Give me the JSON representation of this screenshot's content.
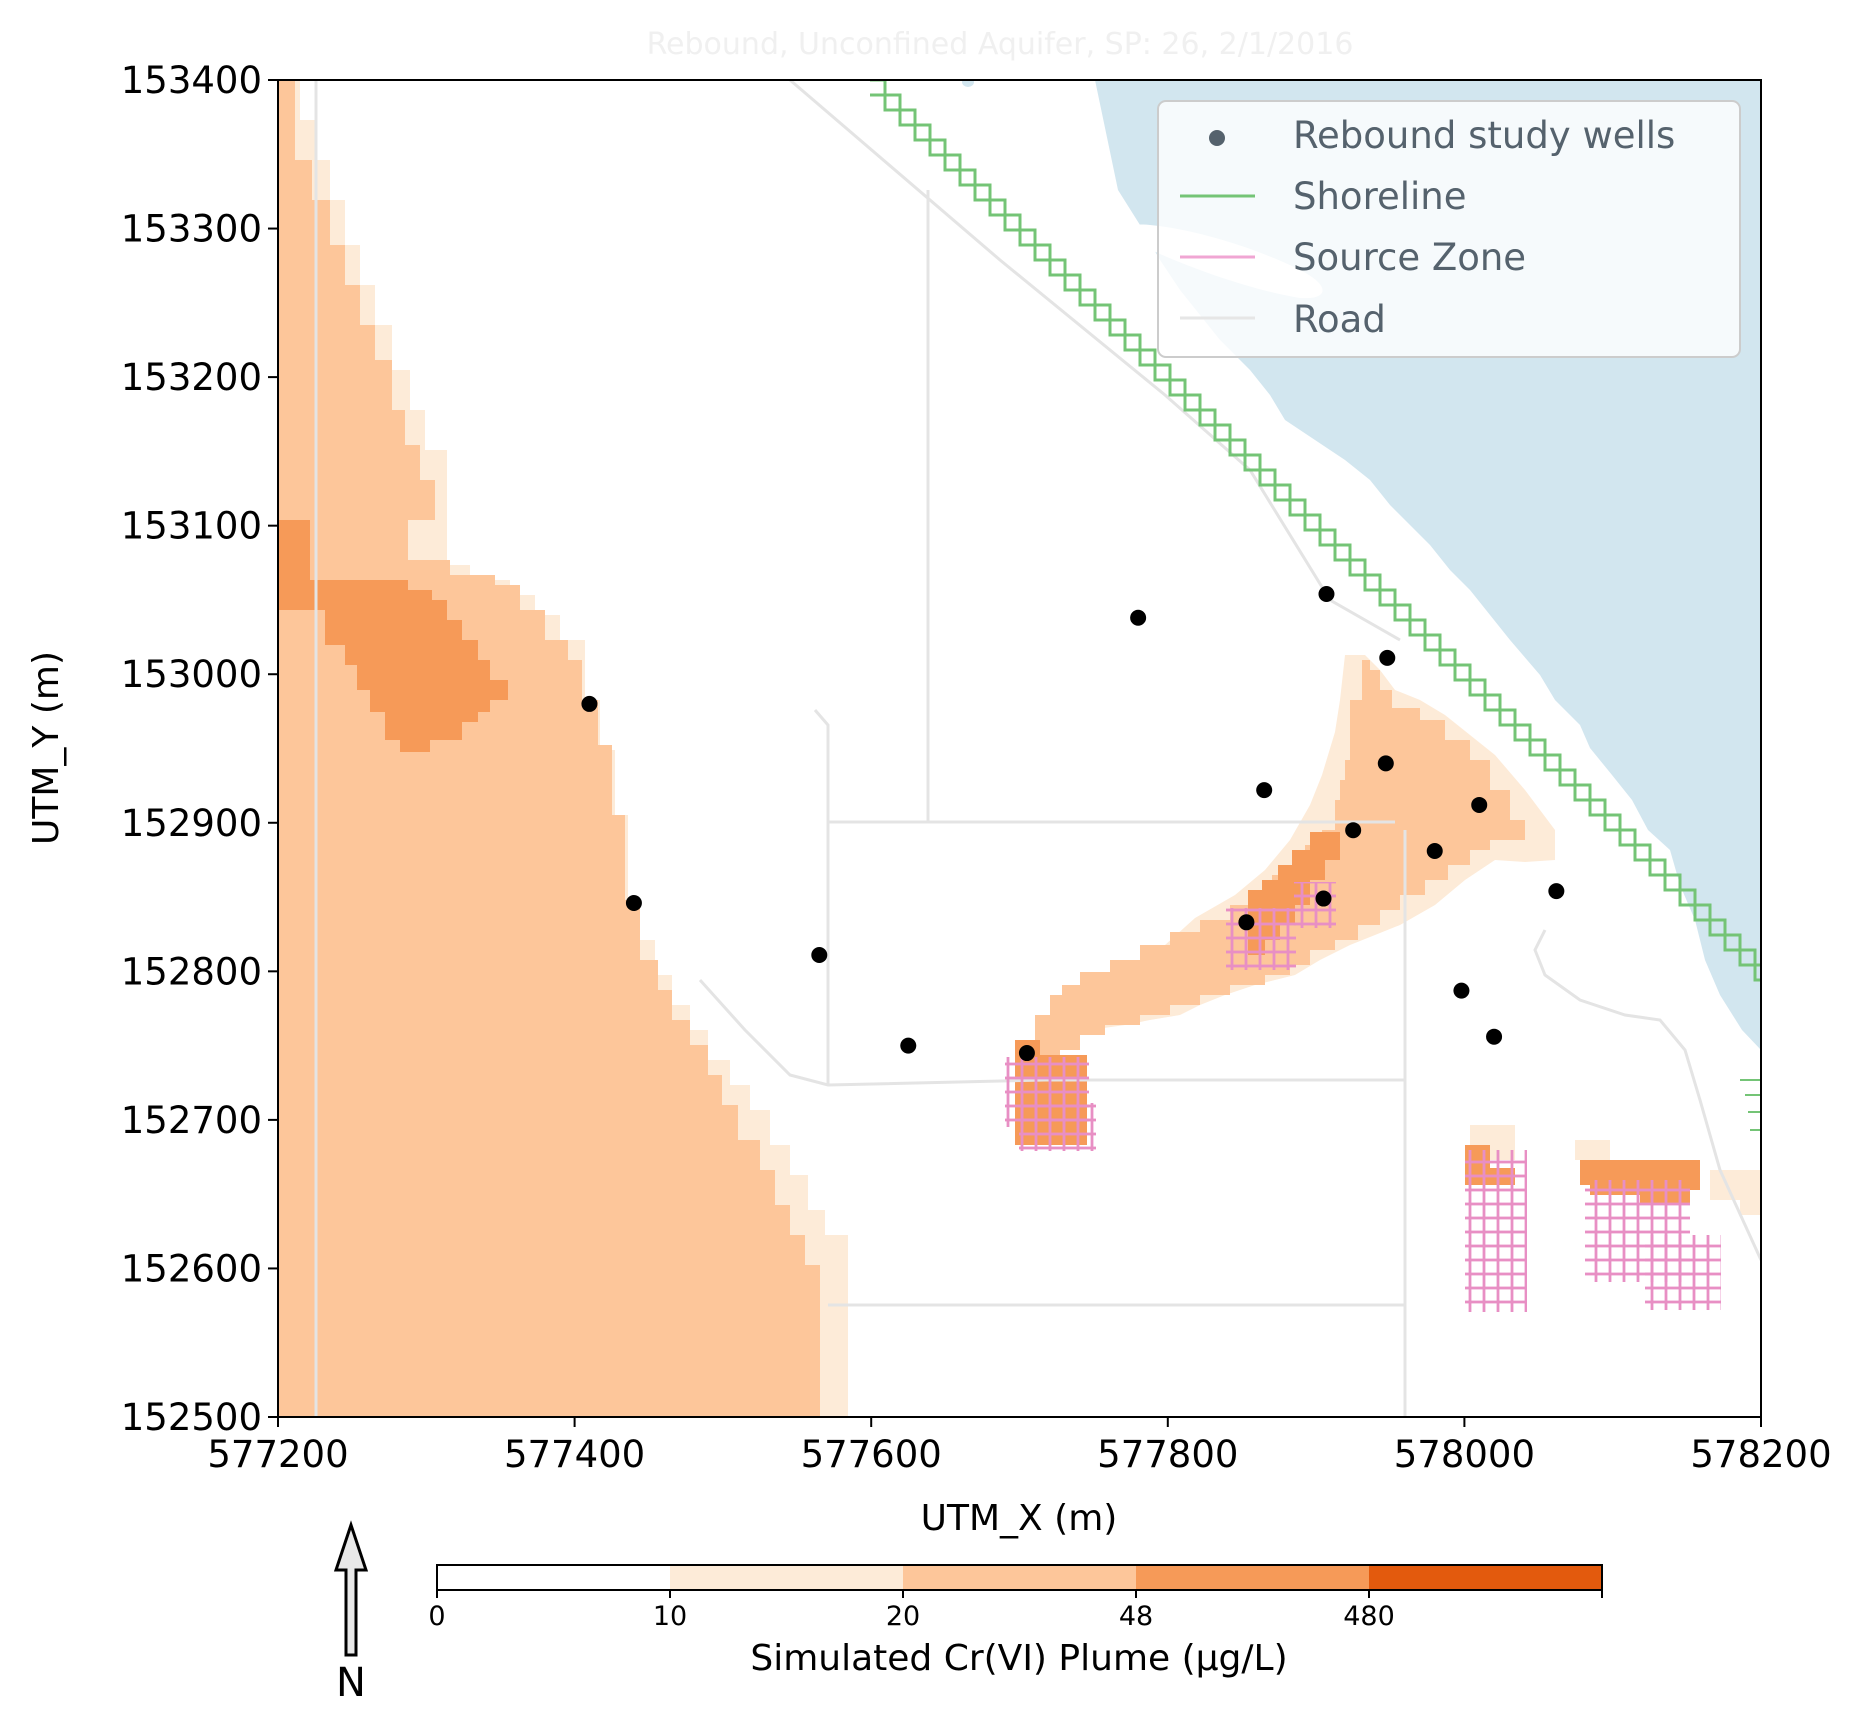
{
  "map": {
    "title": "Rebound, Unconfined Aquifer, SP: 26, 2/1/2016",
    "xlabel": "UTM_X (m)",
    "ylabel": "UTM_Y (m)",
    "xlim": [
      577200,
      578200
    ],
    "ylim": [
      152500,
      153400
    ],
    "x_ticks": [
      "577200",
      "577400",
      "577600",
      "577800",
      "578000",
      "578200"
    ],
    "y_ticks": [
      "152500",
      "152600",
      "152700",
      "152800",
      "152900",
      "153000",
      "153100",
      "153200",
      "153300",
      "153400"
    ],
    "north_arrow_label": "N",
    "water_color": "#d2e6ef"
  },
  "legend": {
    "items": [
      {
        "label": "Rebound study wells",
        "symbol": "dot",
        "color": "#000000"
      },
      {
        "label": "Shoreline",
        "symbol": "line",
        "color": "#74c476"
      },
      {
        "label": "Source Zone",
        "symbol": "line",
        "color": "#f0a6d3"
      },
      {
        "label": "Road",
        "symbol": "line",
        "color": "#e6e6e6"
      }
    ]
  },
  "colorbar": {
    "label": "Simulated Cr(VI) Plume (µg/L)",
    "ticks": [
      "0",
      "10",
      "20",
      "48",
      "480"
    ],
    "colors": [
      "#ffffff",
      "#fdebd8",
      "#fdc69a",
      "#f69a58",
      "#e35a0d"
    ]
  },
  "wells": [
    {
      "x": 577410,
      "y": 152980
    },
    {
      "x": 577440,
      "y": 152846
    },
    {
      "x": 577565,
      "y": 152811
    },
    {
      "x": 577625,
      "y": 152750
    },
    {
      "x": 577705,
      "y": 152745
    },
    {
      "x": 577780,
      "y": 153038
    },
    {
      "x": 577865,
      "y": 152922
    },
    {
      "x": 577853,
      "y": 152833
    },
    {
      "x": 577905,
      "y": 152849
    },
    {
      "x": 577925,
      "y": 152895
    },
    {
      "x": 577907,
      "y": 153054
    },
    {
      "x": 577948,
      "y": 153011
    },
    {
      "x": 577947,
      "y": 152940
    },
    {
      "x": 577980,
      "y": 152881
    },
    {
      "x": 578010,
      "y": 152912
    },
    {
      "x": 577998,
      "y": 152787
    },
    {
      "x": 578020,
      "y": 152756
    },
    {
      "x": 578062,
      "y": 152854
    }
  ]
}
